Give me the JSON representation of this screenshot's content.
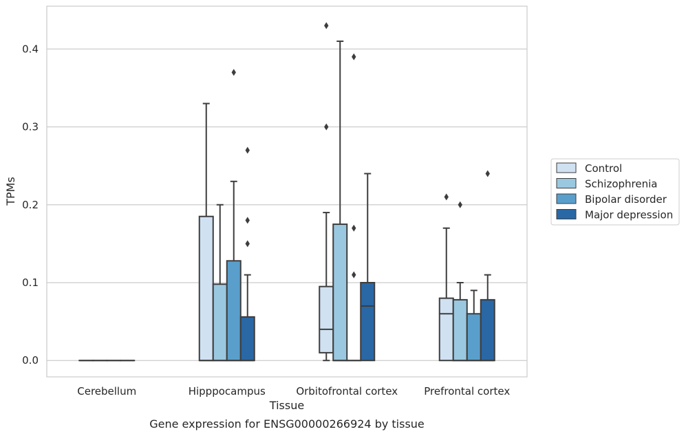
{
  "chart_data": {
    "type": "box",
    "xlabel": "Tissue",
    "ylabel": "TPMs",
    "caption": "Gene expression for ENSG00000266924 by tissue",
    "ylim": [
      -0.021,
      0.455
    ],
    "yticks": [
      0.0,
      0.1,
      0.2,
      0.3,
      0.4
    ],
    "ytick_labels": [
      "0.0",
      "0.1",
      "0.2",
      "0.3",
      "0.4"
    ],
    "grid": "horizontal",
    "legend_position": "right",
    "categories": [
      "Cerebellum",
      "Hipppocampus",
      "Orbitofrontal cortex",
      "Prefrontal cortex"
    ],
    "series": [
      {
        "name": "Control",
        "color": "#d0e1f2",
        "boxes": [
          {
            "q1": 0.0,
            "median": 0.0,
            "q3": 0.0,
            "whisker_low": 0.0,
            "whisker_high": 0.0,
            "outliers": []
          },
          {
            "q1": 0.0,
            "median": 0.0,
            "q3": 0.185,
            "whisker_low": 0.0,
            "whisker_high": 0.33,
            "outliers": []
          },
          {
            "q1": 0.01,
            "median": 0.04,
            "q3": 0.095,
            "whisker_low": 0.0,
            "whisker_high": 0.19,
            "outliers": [
              0.3,
              0.43
            ]
          },
          {
            "q1": 0.0,
            "median": 0.06,
            "q3": 0.08,
            "whisker_low": 0.0,
            "whisker_high": 0.17,
            "outliers": [
              0.21
            ]
          }
        ]
      },
      {
        "name": "Schizophrenia",
        "color": "#9ac8e0",
        "boxes": [
          {
            "q1": 0.0,
            "median": 0.0,
            "q3": 0.0,
            "whisker_low": 0.0,
            "whisker_high": 0.0,
            "outliers": []
          },
          {
            "q1": 0.0,
            "median": 0.0,
            "q3": 0.098,
            "whisker_low": 0.0,
            "whisker_high": 0.2,
            "outliers": []
          },
          {
            "q1": 0.0,
            "median": 0.0,
            "q3": 0.175,
            "whisker_low": 0.0,
            "whisker_high": 0.41,
            "outliers": []
          },
          {
            "q1": 0.0,
            "median": 0.0,
            "q3": 0.078,
            "whisker_low": 0.0,
            "whisker_high": 0.1,
            "outliers": [
              0.2
            ]
          }
        ]
      },
      {
        "name": "Bipolar disorder",
        "color": "#5a9fcc",
        "boxes": [
          {
            "q1": 0.0,
            "median": 0.0,
            "q3": 0.0,
            "whisker_low": 0.0,
            "whisker_high": 0.0,
            "outliers": []
          },
          {
            "q1": 0.0,
            "median": 0.0,
            "q3": 0.128,
            "whisker_low": 0.0,
            "whisker_high": 0.23,
            "outliers": [
              0.37
            ]
          },
          {
            "q1": 0.0,
            "median": 0.0,
            "q3": 0.0,
            "whisker_low": 0.0,
            "whisker_high": 0.0,
            "outliers": [
              0.11,
              0.17,
              0.39
            ]
          },
          {
            "q1": 0.0,
            "median": 0.0,
            "q3": 0.06,
            "whisker_low": 0.0,
            "whisker_high": 0.09,
            "outliers": []
          }
        ]
      },
      {
        "name": "Major depression",
        "color": "#2a67a5",
        "boxes": [
          {
            "q1": 0.0,
            "median": 0.0,
            "q3": 0.0,
            "whisker_low": 0.0,
            "whisker_high": 0.0,
            "outliers": []
          },
          {
            "q1": 0.0,
            "median": 0.0,
            "q3": 0.056,
            "whisker_low": 0.0,
            "whisker_high": 0.11,
            "outliers": [
              0.15,
              0.18,
              0.27
            ]
          },
          {
            "q1": 0.0,
            "median": 0.07,
            "q3": 0.1,
            "whisker_low": 0.0,
            "whisker_high": 0.24,
            "outliers": []
          },
          {
            "q1": 0.0,
            "median": 0.0,
            "q3": 0.078,
            "whisker_low": 0.0,
            "whisker_high": 0.11,
            "outliers": [
              0.24
            ]
          }
        ]
      }
    ]
  }
}
